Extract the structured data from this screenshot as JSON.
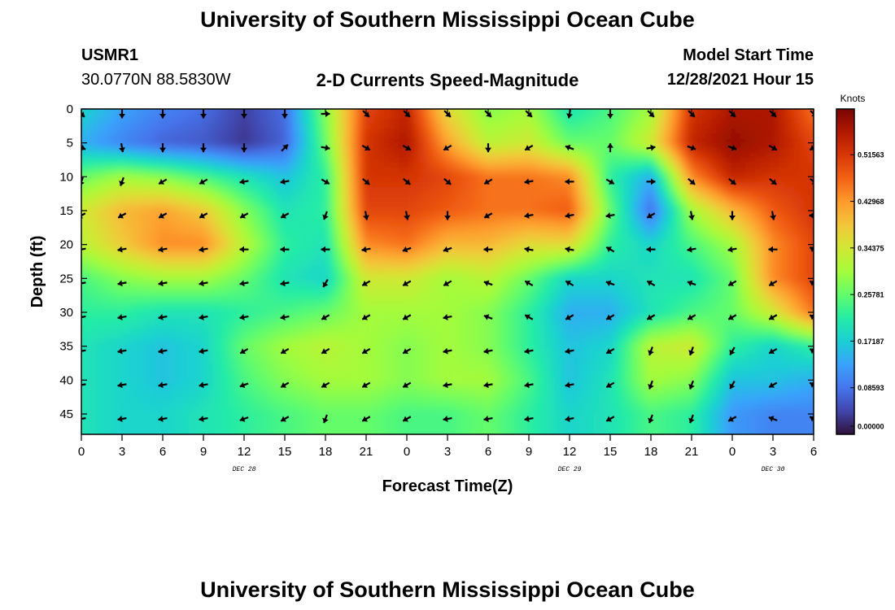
{
  "header": {
    "title": "University of Southern Mississippi Ocean Cube",
    "station_id": "USMR1",
    "station_coords": "30.0770N  88.5830W",
    "plot_subtitle": "2-D Currents Speed-Magnitude",
    "model_start_label": "Model Start Time",
    "model_start_value": "12/28/2021 Hour 15"
  },
  "footer": {
    "title": "University of Southern Mississippi Ocean Cube"
  },
  "colors": {
    "colormap": [
      "#30123b",
      "#4145ab",
      "#4675ed",
      "#39a2fc",
      "#1bcfd4",
      "#24eca6",
      "#61fc6c",
      "#a4fc3b",
      "#d1e834",
      "#f3c63a",
      "#fe9b2d",
      "#f36315",
      "#d93806",
      "#b11901",
      "#7a0403"
    ],
    "arrow": "#000000"
  },
  "chart_data": {
    "type": "heatmap",
    "xlabel": "Forecast Time(Z)",
    "ylabel": "Depth (ft)",
    "x_tick_labels": [
      "0",
      "3",
      "6",
      "9",
      "12",
      "15",
      "18",
      "21",
      "0",
      "3",
      "6",
      "9",
      "12",
      "15",
      "18",
      "21",
      "0",
      "3",
      "6"
    ],
    "date_labels": [
      {
        "label": "DEC 28",
        "at_tick": 4
      },
      {
        "label": "DEC 29",
        "at_tick": 12
      },
      {
        "label": "DEC 30",
        "at_tick": 17
      }
    ],
    "y_ticks": [
      0,
      5,
      10,
      15,
      20,
      25,
      30,
      35,
      40,
      45
    ],
    "ylim": [
      0,
      48
    ],
    "colorbar": {
      "label": "Knots",
      "ticks": [
        "0.51563",
        "0.42968",
        "0.34375",
        "0.25781",
        "0.17187",
        "0.08593",
        "0.00000"
      ],
      "tick_values": [
        0.51563,
        0.42968,
        0.34375,
        0.25781,
        0.17187,
        0.08593,
        0.0
      ],
      "range": [
        0,
        0.6
      ]
    },
    "arrow_x_ticks": [
      0,
      1,
      2,
      3,
      4,
      5,
      6,
      7,
      8,
      9,
      10,
      11,
      12,
      13,
      14,
      15,
      16,
      17,
      18
    ],
    "arrow_depths": [
      0,
      5,
      10,
      15,
      20,
      25,
      30,
      35,
      40,
      45
    ],
    "speed_grid": [
      [
        0.18,
        0.13,
        0.1,
        0.08,
        0.04,
        0.08,
        0.28,
        0.5,
        0.54,
        0.36,
        0.28,
        0.3,
        0.2,
        0.24,
        0.3,
        0.52,
        0.56,
        0.56,
        0.46
      ],
      [
        0.14,
        0.1,
        0.07,
        0.06,
        0.03,
        0.07,
        0.26,
        0.52,
        0.56,
        0.42,
        0.32,
        0.34,
        0.26,
        0.26,
        0.34,
        0.54,
        0.58,
        0.56,
        0.5
      ],
      [
        0.26,
        0.3,
        0.28,
        0.24,
        0.2,
        0.16,
        0.22,
        0.52,
        0.52,
        0.5,
        0.46,
        0.46,
        0.44,
        0.22,
        0.14,
        0.44,
        0.54,
        0.52,
        0.52
      ],
      [
        0.34,
        0.4,
        0.42,
        0.38,
        0.28,
        0.2,
        0.22,
        0.5,
        0.5,
        0.48,
        0.46,
        0.46,
        0.48,
        0.26,
        0.08,
        0.3,
        0.4,
        0.48,
        0.52
      ],
      [
        0.32,
        0.38,
        0.44,
        0.44,
        0.32,
        0.22,
        0.2,
        0.44,
        0.46,
        0.4,
        0.4,
        0.36,
        0.36,
        0.22,
        0.18,
        0.24,
        0.3,
        0.44,
        0.5
      ],
      [
        0.24,
        0.28,
        0.3,
        0.3,
        0.26,
        0.2,
        0.18,
        0.34,
        0.34,
        0.3,
        0.32,
        0.26,
        0.18,
        0.18,
        0.2,
        0.2,
        0.26,
        0.44,
        0.5
      ],
      [
        0.22,
        0.22,
        0.2,
        0.2,
        0.22,
        0.24,
        0.26,
        0.3,
        0.3,
        0.3,
        0.28,
        0.22,
        0.14,
        0.14,
        0.2,
        0.24,
        0.26,
        0.34,
        0.46
      ],
      [
        0.2,
        0.18,
        0.16,
        0.18,
        0.26,
        0.3,
        0.32,
        0.3,
        0.28,
        0.3,
        0.28,
        0.22,
        0.16,
        0.18,
        0.32,
        0.34,
        0.22,
        0.18,
        0.22
      ],
      [
        0.2,
        0.18,
        0.16,
        0.18,
        0.24,
        0.28,
        0.3,
        0.3,
        0.28,
        0.3,
        0.3,
        0.24,
        0.16,
        0.2,
        0.3,
        0.28,
        0.16,
        0.16,
        0.14
      ],
      [
        0.2,
        0.18,
        0.18,
        0.2,
        0.22,
        0.24,
        0.26,
        0.26,
        0.24,
        0.24,
        0.26,
        0.22,
        0.18,
        0.2,
        0.24,
        0.22,
        0.12,
        0.1,
        0.1
      ]
    ],
    "arrow_angles_deg": [
      [
        -45,
        -90,
        -90,
        -90,
        -90,
        -90,
        0,
        -45,
        -45,
        -45,
        -45,
        -45,
        -100,
        -90,
        -45,
        -45,
        -45,
        -45,
        -45
      ],
      [
        -20,
        -80,
        -90,
        -90,
        -90,
        45,
        -10,
        -30,
        -30,
        -150,
        -90,
        -150,
        160,
        90,
        10,
        -20,
        -20,
        -30,
        -150
      ],
      [
        -110,
        -110,
        -150,
        -150,
        -170,
        -170,
        -30,
        -40,
        -40,
        -40,
        -150,
        -170,
        180,
        -30,
        0,
        -40,
        -40,
        -40,
        -40
      ],
      [
        -150,
        -150,
        -150,
        -150,
        -150,
        -150,
        -110,
        -80,
        -80,
        -90,
        -150,
        -170,
        -170,
        -170,
        -150,
        -80,
        -90,
        -80,
        -180
      ],
      [
        -170,
        -170,
        -170,
        -170,
        180,
        180,
        180,
        -170,
        -160,
        -160,
        180,
        170,
        170,
        150,
        180,
        -170,
        -170,
        180,
        150
      ],
      [
        -170,
        -170,
        -170,
        -170,
        -170,
        -170,
        -120,
        -150,
        -150,
        -150,
        160,
        150,
        150,
        160,
        150,
        160,
        -150,
        -150,
        150
      ],
      [
        -170,
        -170,
        -170,
        -170,
        -170,
        -170,
        -150,
        -150,
        -150,
        -170,
        160,
        150,
        -150,
        -150,
        -150,
        -150,
        -150,
        -150,
        150
      ],
      [
        -170,
        -170,
        -170,
        -170,
        -150,
        -150,
        -150,
        -150,
        -150,
        -170,
        -170,
        -170,
        -170,
        -150,
        -110,
        -110,
        -120,
        -150,
        150
      ],
      [
        -170,
        -170,
        -170,
        -170,
        -160,
        -150,
        -150,
        -150,
        -150,
        -170,
        -170,
        -170,
        -170,
        -150,
        -110,
        -110,
        -120,
        -150,
        150
      ],
      [
        -170,
        -170,
        -170,
        -170,
        -160,
        -150,
        -110,
        -150,
        -150,
        -170,
        -170,
        -170,
        -170,
        -150,
        -110,
        -110,
        -150,
        160,
        150
      ]
    ]
  }
}
